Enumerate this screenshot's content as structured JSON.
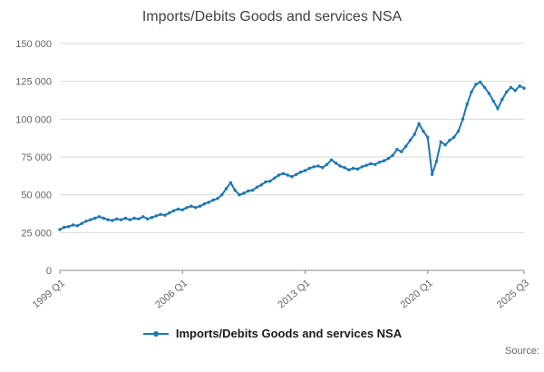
{
  "page": {
    "title": "Imports/Debits Goods and services NSA",
    "source_label": "Source:"
  },
  "legend": {
    "label": "Imports/Debits Goods and services NSA"
  },
  "colors": {
    "line": "#1f77b4",
    "grid": "#d9d9d9",
    "axis": "#8c8c8c",
    "tick_text": "#666666",
    "title_text": "#414042"
  },
  "chart_data": {
    "type": "line",
    "title": "Imports/Debits Goods and services NSA",
    "xlabel": "",
    "ylabel": "",
    "x_start": "1999 Q1",
    "x_end": "2025 Q3",
    "frequency": "quarterly",
    "ylim": [
      0,
      150000
    ],
    "grid": "horizontal",
    "legend_position": "bottom",
    "y_ticks": [
      0,
      25000,
      50000,
      75000,
      100000,
      125000,
      150000
    ],
    "x_tick_marks": [
      {
        "label": "1999 Q1",
        "index": 0
      },
      {
        "label": "2006 Q1",
        "index": 28
      },
      {
        "label": "2013 Q1",
        "index": 56
      },
      {
        "label": "2020 Q1",
        "index": 84
      },
      {
        "label": "2025 Q3",
        "index": 106
      }
    ],
    "values": [
      27000,
      28500,
      29000,
      30000,
      29500,
      31000,
      32500,
      33500,
      34500,
      35500,
      34500,
      33500,
      33000,
      34000,
      33500,
      34500,
      33500,
      34500,
      34000,
      35500,
      34000,
      35000,
      36000,
      37000,
      36500,
      38000,
      39500,
      40500,
      40000,
      41500,
      42500,
      41500,
      42500,
      44000,
      45000,
      46500,
      47500,
      50000,
      54000,
      58000,
      53000,
      50000,
      51000,
      52500,
      53000,
      55000,
      56500,
      58500,
      59000,
      61000,
      63000,
      64000,
      63000,
      62000,
      63500,
      65000,
      66000,
      67500,
      68500,
      69000,
      68000,
      70000,
      73000,
      71000,
      69000,
      68000,
      66500,
      67500,
      67000,
      68500,
      69500,
      70500,
      70000,
      71500,
      72500,
      74000,
      76000,
      80000,
      78500,
      82000,
      86000,
      90000,
      97000,
      92000,
      88000,
      63500,
      72000,
      85000,
      83000,
      86000,
      88000,
      92000,
      100000,
      110000,
      118000,
      123000,
      124500,
      121000,
      117000,
      112000,
      107000,
      113000,
      118000,
      121000,
      119000,
      122000,
      120500
    ]
  }
}
